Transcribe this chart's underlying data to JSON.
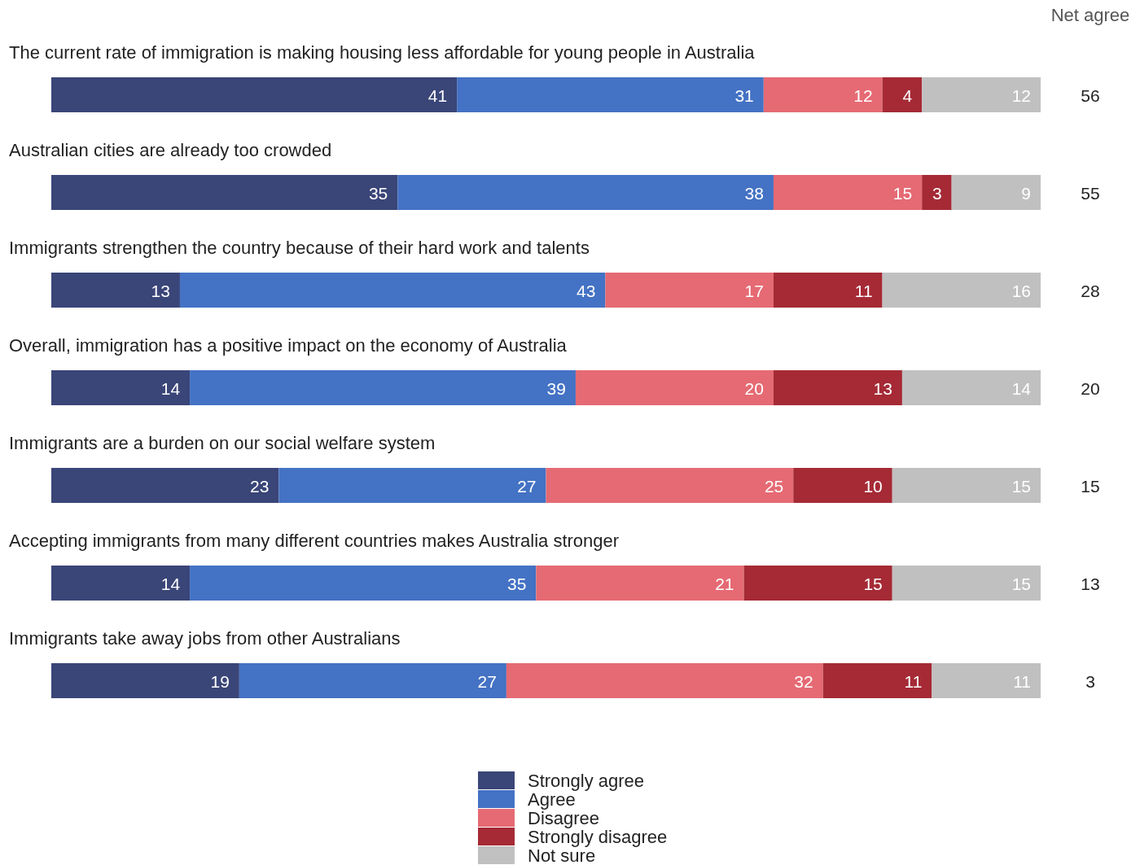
{
  "chart_data": {
    "type": "bar",
    "orientation": "horizontal",
    "stacked": true,
    "data_labels": true,
    "legend": "bottom",
    "categories": [
      "The current rate of immigration is making housing less affordable for young people in Australia",
      "Australian cities are already too crowded",
      "Immigrants strengthen the country because of their hard work and talents",
      "Overall, immigration has a positive impact on the economy of Australia",
      "Immigrants are a burden on our social welfare system",
      "Accepting immigrants from many different countries makes Australia stronger",
      "Immigrants take away jobs from other Australians"
    ],
    "series": [
      {
        "name": "Strongly agree",
        "color": "#3a4578",
        "values": [
          41,
          35,
          13,
          14,
          23,
          14,
          19
        ]
      },
      {
        "name": "Agree",
        "color": "#4472c4",
        "values": [
          31,
          38,
          43,
          39,
          27,
          35,
          27
        ]
      },
      {
        "name": "Disagree",
        "color": "#e56a73",
        "values": [
          12,
          15,
          17,
          20,
          25,
          21,
          32
        ]
      },
      {
        "name": "Strongly disagree",
        "color": "#a52a35",
        "values": [
          4,
          3,
          11,
          13,
          10,
          15,
          11
        ]
      },
      {
        "name": "Not sure",
        "color": "#c0c0c0",
        "values": [
          12,
          9,
          16,
          14,
          15,
          15,
          11
        ]
      }
    ],
    "annotations": [
      "Net agree",
      "56",
      "55",
      "28",
      "20",
      "15",
      "13",
      "3"
    ]
  }
}
